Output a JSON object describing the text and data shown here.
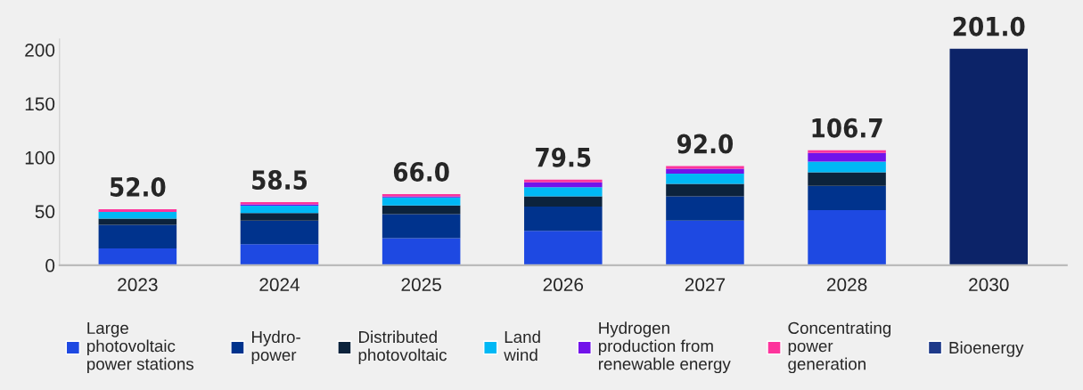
{
  "chart_data": {
    "type": "bar",
    "stacked": true,
    "categories": [
      "2023",
      "2024",
      "2025",
      "2026",
      "2027",
      "2028",
      "2030"
    ],
    "series": [
      {
        "name": "Large\nphotovoltaic\npower stations",
        "color": "#1e49e2",
        "values": [
          15.5,
          19.5,
          25.0,
          32.0,
          41.5,
          51.2,
          null
        ]
      },
      {
        "name": "Hydro-\npower",
        "color": "#00338d",
        "values": [
          22.0,
          22.0,
          22.5,
          22.5,
          22.5,
          22.5,
          null
        ]
      },
      {
        "name": "Distributed\nphotovoltaic",
        "color": "#0c233c",
        "values": [
          5.8,
          7.0,
          8.0,
          9.5,
          11.5,
          12.5,
          null
        ]
      },
      {
        "name": "Land\nwind",
        "color": "#00b8f5",
        "values": [
          6.2,
          6.8,
          7.5,
          8.5,
          9.5,
          10.0,
          null
        ]
      },
      {
        "name": "Hydrogen\nproduction from\nrenewable energy",
        "color": "#7213ea",
        "values": [
          0,
          1.2,
          1.0,
          4.5,
          4.5,
          8.0,
          null
        ]
      },
      {
        "name": "Concentrating\npower\ngeneration",
        "color": "#fd349c",
        "values": [
          2.5,
          2.0,
          2.0,
          2.5,
          2.5,
          2.5,
          null
        ]
      },
      {
        "name": "Bioenergy",
        "color": "#1e3a8a",
        "values": [
          null,
          null,
          null,
          null,
          null,
          null,
          null
        ]
      },
      {
        "color": "#0c2368",
        "values": [
          null,
          null,
          null,
          null,
          null,
          null,
          201.0
        ]
      }
    ],
    "totals": [
      "52.0",
      "58.5",
      "66.0",
      "79.5",
      "92.0",
      "106.7",
      "201.0"
    ],
    "ylim": [
      0,
      210
    ],
    "yticks": [
      0,
      50,
      100,
      150,
      200
    ],
    "grid": false,
    "legend": "bottom"
  }
}
